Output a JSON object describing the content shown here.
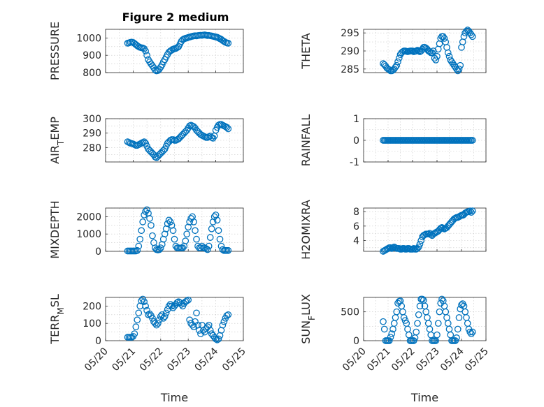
{
  "figure": {
    "title": "Figure 2 medium",
    "marker_color": "#0072BD"
  },
  "chart_data": [
    {
      "type": "scatter",
      "grid": true,
      "ylabel": "PRESSURE",
      "ylim": [
        800,
        1050
      ],
      "yticks": [
        800,
        900,
        1000
      ],
      "ytick_labels": [
        "800",
        "900",
        "1000"
      ],
      "x": [
        0.8,
        0.85,
        0.9,
        0.95,
        1.0,
        1.05,
        1.1,
        1.15,
        1.2,
        1.25,
        1.3,
        1.35,
        1.4,
        1.45,
        1.5,
        1.55,
        1.6,
        1.65,
        1.7,
        1.75,
        1.8,
        1.85,
        1.9,
        1.95,
        2.0,
        2.05,
        2.1,
        2.15,
        2.2,
        2.25,
        2.3,
        2.35,
        2.4,
        2.45,
        2.5,
        2.55,
        2.6,
        2.65,
        2.7,
        2.75,
        2.8,
        2.85,
        2.9,
        2.95,
        3.0,
        3.05,
        3.1,
        3.15,
        3.2,
        3.25,
        3.3,
        3.35,
        3.4,
        3.45,
        3.5,
        3.55,
        3.6,
        3.65,
        3.7,
        3.75,
        3.8,
        3.85,
        3.9,
        3.95,
        4.0,
        4.05,
        4.1,
        4.15,
        4.2,
        4.25,
        4.3,
        4.35,
        4.4,
        4.45
      ],
      "y": [
        970,
        972,
        975,
        976,
        974,
        968,
        962,
        955,
        950,
        946,
        944,
        942,
        938,
        925,
        900,
        875,
        862,
        850,
        840,
        828,
        815,
        810,
        812,
        820,
        832,
        845,
        862,
        875,
        890,
        905,
        918,
        925,
        930,
        935,
        938,
        940,
        945,
        950,
        965,
        980,
        990,
        995,
        998,
        1000,
        1003,
        1005,
        1008,
        1010,
        1012,
        1013,
        1012,
        1014,
        1015,
        1016,
        1015,
        1017,
        1018,
        1016,
        1014,
        1015,
        1013,
        1012,
        1010,
        1008,
        1006,
        1004,
        1000,
        996,
        992,
        985,
        980,
        975,
        972,
        970
      ]
    },
    {
      "type": "scatter",
      "grid": true,
      "ylabel": "THETA",
      "ylim": [
        284,
        296
      ],
      "yticks": [
        285,
        290,
        295
      ],
      "ytick_labels": [
        "285",
        "290",
        "295"
      ],
      "x": [
        0.8,
        0.85,
        0.9,
        0.95,
        1.0,
        1.05,
        1.1,
        1.15,
        1.2,
        1.25,
        1.3,
        1.35,
        1.4,
        1.45,
        1.5,
        1.55,
        1.6,
        1.65,
        1.7,
        1.75,
        1.8,
        1.85,
        1.9,
        1.95,
        2.0,
        2.05,
        2.1,
        2.15,
        2.2,
        2.25,
        2.3,
        2.35,
        2.4,
        2.45,
        2.5,
        2.55,
        2.6,
        2.65,
        2.7,
        2.75,
        2.8,
        2.85,
        2.9,
        2.95,
        3.0,
        3.05,
        3.1,
        3.15,
        3.2,
        3.25,
        3.3,
        3.35,
        3.4,
        3.45,
        3.5,
        3.55,
        3.6,
        3.65,
        3.7,
        3.75,
        3.8,
        3.85,
        3.9,
        3.95,
        4.0,
        4.05,
        4.1,
        4.15,
        4.2,
        4.25,
        4.3,
        4.35,
        4.4,
        4.45
      ],
      "y": [
        286.5,
        286.2,
        285.8,
        285.3,
        285.0,
        284.8,
        284.5,
        284.5,
        284.7,
        285.0,
        285.5,
        286.0,
        287.0,
        288.0,
        289.0,
        289.5,
        289.8,
        290.0,
        290.0,
        289.9,
        289.8,
        289.9,
        290.0,
        290.0,
        290.0,
        289.8,
        289.9,
        290.0,
        290.2,
        290.0,
        289.8,
        290.0,
        290.5,
        291.0,
        291.0,
        290.8,
        290.5,
        290.0,
        289.8,
        289.5,
        289.5,
        290.0,
        288.0,
        287.5,
        288.5,
        290.5,
        292.0,
        293.5,
        294.0,
        294.0,
        293.5,
        292.5,
        291.0,
        289.5,
        288.5,
        287.5,
        287.0,
        286.5,
        286.0,
        285.5,
        285.0,
        284.5,
        285.0,
        286.0,
        291.0,
        292.5,
        294.0,
        295.0,
        295.5,
        295.8,
        295.5,
        295.0,
        294.5,
        294.0
      ]
    },
    {
      "type": "scatter",
      "grid": true,
      "ylabel": "AIR_TEMP",
      "ylim": [
        270,
        300
      ],
      "yticks": [
        280,
        290,
        300
      ],
      "ytick_labels": [
        "280",
        "290",
        "300"
      ],
      "x": [
        0.8,
        0.85,
        0.9,
        0.95,
        1.0,
        1.05,
        1.1,
        1.15,
        1.2,
        1.25,
        1.3,
        1.35,
        1.4,
        1.45,
        1.5,
        1.55,
        1.6,
        1.65,
        1.7,
        1.75,
        1.8,
        1.85,
        1.9,
        1.95,
        2.0,
        2.05,
        2.1,
        2.15,
        2.2,
        2.25,
        2.3,
        2.35,
        2.4,
        2.45,
        2.5,
        2.55,
        2.6,
        2.65,
        2.7,
        2.75,
        2.8,
        2.85,
        2.9,
        2.95,
        3.0,
        3.05,
        3.1,
        3.15,
        3.2,
        3.25,
        3.3,
        3.35,
        3.4,
        3.45,
        3.5,
        3.55,
        3.6,
        3.65,
        3.7,
        3.75,
        3.8,
        3.85,
        3.9,
        3.95,
        4.0,
        4.05,
        4.1,
        4.15,
        4.2,
        4.25,
        4.3,
        4.35,
        4.4,
        4.45
      ],
      "y": [
        284,
        283.5,
        283,
        282.8,
        282.5,
        282.0,
        281.5,
        281.5,
        282.0,
        282.5,
        283.0,
        283.5,
        284.0,
        283.0,
        281.0,
        279.0,
        278.0,
        277.0,
        276.0,
        275.0,
        273.5,
        273.0,
        274.0,
        275.0,
        276.0,
        277.0,
        278.0,
        279.0,
        281.0,
        283.0,
        284.0,
        285.0,
        285.5,
        285.5,
        285.0,
        285.0,
        285.5,
        286.0,
        287.0,
        288.0,
        289.0,
        290.0,
        291.0,
        292.0,
        293.5,
        295.0,
        295.5,
        295.0,
        294.5,
        293.5,
        292.0,
        291.0,
        290.0,
        289.0,
        288.5,
        288.0,
        287.5,
        287.0,
        287.0,
        287.5,
        288.0,
        287.0,
        286.5,
        288.0,
        292.0,
        294.0,
        295.5,
        296.0,
        296.0,
        295.5,
        295.0,
        294.5,
        294.0,
        293.0
      ]
    },
    {
      "type": "scatter",
      "grid": true,
      "ylabel": "RAINFALL",
      "ylim": [
        -1,
        1
      ],
      "yticks": [
        -1,
        0,
        1
      ],
      "ytick_labels": [
        "-1",
        "0",
        "1"
      ],
      "x": [
        0.8,
        0.85,
        0.9,
        0.95,
        1.0,
        1.05,
        1.1,
        1.15,
        1.2,
        1.25,
        1.3,
        1.35,
        1.4,
        1.45,
        1.5,
        1.55,
        1.6,
        1.65,
        1.7,
        1.75,
        1.8,
        1.85,
        1.9,
        1.95,
        2.0,
        2.05,
        2.1,
        2.15,
        2.2,
        2.25,
        2.3,
        2.35,
        2.4,
        2.45,
        2.5,
        2.55,
        2.6,
        2.65,
        2.7,
        2.75,
        2.8,
        2.85,
        2.9,
        2.95,
        3.0,
        3.05,
        3.1,
        3.15,
        3.2,
        3.25,
        3.3,
        3.35,
        3.4,
        3.45,
        3.5,
        3.55,
        3.6,
        3.65,
        3.7,
        3.75,
        3.8,
        3.85,
        3.9,
        3.95,
        4.0,
        4.05,
        4.1,
        4.15,
        4.2,
        4.25,
        4.3,
        4.35,
        4.4,
        4.45
      ],
      "y": [
        0,
        0,
        0,
        0,
        0,
        0,
        0,
        0,
        0,
        0,
        0,
        0,
        0,
        0,
        0,
        0,
        0,
        0,
        0,
        0,
        0,
        0,
        0,
        0,
        0,
        0,
        0,
        0,
        0,
        0,
        0,
        0,
        0,
        0,
        0,
        0,
        0,
        0,
        0,
        0,
        0,
        0,
        0,
        0,
        0,
        0,
        0,
        0,
        0,
        0,
        0,
        0,
        0,
        0,
        0,
        0,
        0,
        0,
        0,
        0,
        0,
        0,
        0,
        0,
        0,
        0,
        0,
        0,
        0,
        0,
        0,
        0,
        0,
        0
      ]
    },
    {
      "type": "scatter",
      "grid": true,
      "ylabel": "MIXDEPTH",
      "ylim": [
        0,
        2500
      ],
      "yticks": [
        0,
        1000,
        2000
      ],
      "ytick_labels": [
        "0",
        "1000",
        "2000"
      ],
      "x": [
        0.8,
        0.85,
        0.9,
        0.95,
        1.0,
        1.05,
        1.1,
        1.15,
        1.2,
        1.25,
        1.3,
        1.35,
        1.4,
        1.45,
        1.5,
        1.55,
        1.6,
        1.65,
        1.7,
        1.75,
        1.8,
        1.85,
        1.9,
        1.95,
        2.0,
        2.05,
        2.1,
        2.15,
        2.2,
        2.25,
        2.3,
        2.35,
        2.4,
        2.45,
        2.5,
        2.55,
        2.6,
        2.65,
        2.7,
        2.75,
        2.8,
        2.85,
        2.9,
        2.95,
        3.0,
        3.05,
        3.1,
        3.15,
        3.2,
        3.25,
        3.3,
        3.35,
        3.4,
        3.45,
        3.5,
        3.55,
        3.6,
        3.65,
        3.7,
        3.75,
        3.8,
        3.85,
        3.9,
        3.95,
        4.0,
        4.05,
        4.1,
        4.15,
        4.2,
        4.25,
        4.3,
        4.35,
        4.4,
        4.45
      ],
      "y": [
        20,
        20,
        20,
        20,
        20,
        20,
        20,
        50,
        300,
        700,
        1200,
        1700,
        2100,
        2300,
        2400,
        2200,
        1900,
        1500,
        900,
        500,
        200,
        100,
        80,
        100,
        200,
        400,
        700,
        1000,
        1300,
        1600,
        1800,
        1700,
        1500,
        1200,
        700,
        300,
        200,
        200,
        200,
        200,
        200,
        300,
        600,
        1000,
        1400,
        1700,
        1900,
        2000,
        1700,
        1200,
        700,
        300,
        200,
        200,
        300,
        200,
        200,
        150,
        100,
        300,
        800,
        1300,
        1700,
        2000,
        2100,
        1800,
        1200,
        700,
        300,
        100,
        50,
        50,
        50,
        50
      ]
    },
    {
      "type": "scatter",
      "grid": true,
      "ylabel": "H2OMIXRA",
      "ylim": [
        2.5,
        8.5
      ],
      "yticks": [
        4,
        6,
        8
      ],
      "ytick_labels": [
        "4",
        "6",
        "8"
      ],
      "x": [
        0.8,
        0.85,
        0.9,
        0.95,
        1.0,
        1.05,
        1.1,
        1.15,
        1.2,
        1.25,
        1.3,
        1.35,
        1.4,
        1.45,
        1.5,
        1.55,
        1.6,
        1.65,
        1.7,
        1.75,
        1.8,
        1.85,
        1.9,
        1.95,
        2.0,
        2.05,
        2.1,
        2.15,
        2.2,
        2.25,
        2.3,
        2.35,
        2.4,
        2.45,
        2.5,
        2.55,
        2.6,
        2.65,
        2.7,
        2.75,
        2.8,
        2.85,
        2.9,
        2.95,
        3.0,
        3.05,
        3.1,
        3.15,
        3.2,
        3.25,
        3.3,
        3.35,
        3.4,
        3.45,
        3.5,
        3.55,
        3.6,
        3.65,
        3.7,
        3.75,
        3.8,
        3.85,
        3.9,
        3.95,
        4.0,
        4.05,
        4.1,
        4.15,
        4.2,
        4.25,
        4.3,
        4.35,
        4.4,
        4.45
      ],
      "y": [
        2.5,
        2.6,
        2.7,
        2.8,
        2.9,
        3.0,
        3.0,
        2.9,
        3.0,
        3.1,
        3.0,
        2.9,
        2.9,
        2.9,
        2.8,
        2.8,
        2.9,
        2.9,
        2.8,
        2.8,
        2.9,
        2.9,
        2.8,
        2.8,
        2.8,
        2.9,
        2.8,
        2.8,
        2.9,
        3.1,
        3.5,
        4.0,
        4.5,
        4.7,
        4.8,
        4.9,
        4.9,
        4.9,
        5.0,
        4.8,
        4.7,
        4.9,
        5.0,
        5.1,
        5.2,
        5.3,
        5.5,
        5.7,
        5.8,
        5.7,
        5.6,
        5.7,
        5.8,
        6.0,
        6.2,
        6.4,
        6.6,
        6.8,
        7.0,
        7.1,
        7.2,
        7.2,
        7.3,
        7.4,
        7.5,
        7.5,
        7.6,
        7.8,
        7.9,
        8.0,
        8.0,
        8.1,
        7.9,
        8.1
      ]
    },
    {
      "type": "scatter",
      "grid": true,
      "ylabel": "TERR_MSL",
      "ylim": [
        0,
        250
      ],
      "yticks": [
        0,
        100,
        200
      ],
      "ytick_labels": [
        "0",
        "100",
        "200"
      ],
      "x": [
        0.8,
        0.85,
        0.9,
        0.95,
        1.0,
        1.05,
        1.1,
        1.15,
        1.2,
        1.25,
        1.3,
        1.35,
        1.4,
        1.45,
        1.5,
        1.55,
        1.6,
        1.65,
        1.7,
        1.75,
        1.8,
        1.85,
        1.9,
        1.95,
        2.0,
        2.05,
        2.1,
        2.15,
        2.2,
        2.25,
        2.3,
        2.35,
        2.4,
        2.45,
        2.5,
        2.55,
        2.6,
        2.65,
        2.7,
        2.75,
        2.8,
        2.85,
        2.9,
        2.95,
        3.0,
        3.05,
        3.1,
        3.15,
        3.2,
        3.25,
        3.3,
        3.35,
        3.4,
        3.45,
        3.5,
        3.55,
        3.6,
        3.65,
        3.7,
        3.75,
        3.8,
        3.85,
        3.9,
        3.95,
        4.0,
        4.05,
        4.1,
        4.15,
        4.2,
        4.25,
        4.3,
        4.35,
        4.4,
        4.45
      ],
      "y": [
        20,
        20,
        20,
        20,
        25,
        40,
        80,
        120,
        160,
        200,
        230,
        240,
        225,
        200,
        175,
        150,
        155,
        145,
        130,
        110,
        100,
        90,
        100,
        120,
        140,
        150,
        130,
        140,
        160,
        180,
        200,
        210,
        200,
        190,
        200,
        210,
        220,
        225,
        220,
        210,
        200,
        215,
        225,
        230,
        235,
        120,
        100,
        90,
        80,
        110,
        160,
        90,
        60,
        40,
        90,
        60,
        50,
        70,
        80,
        90,
        60,
        40,
        30,
        20,
        10,
        5,
        10,
        30,
        60,
        90,
        110,
        130,
        145,
        150
      ]
    },
    {
      "type": "scatter",
      "grid": true,
      "ylabel": "SUN_FLUX",
      "ylim": [
        0,
        750
      ],
      "yticks": [
        0,
        500
      ],
      "ytick_labels": [
        "0",
        "500"
      ],
      "x": [
        0.8,
        0.85,
        0.9,
        0.95,
        1.0,
        1.05,
        1.1,
        1.15,
        1.2,
        1.25,
        1.3,
        1.35,
        1.4,
        1.45,
        1.5,
        1.55,
        1.6,
        1.65,
        1.7,
        1.75,
        1.8,
        1.85,
        1.9,
        1.95,
        2.0,
        2.05,
        2.1,
        2.15,
        2.2,
        2.25,
        2.3,
        2.35,
        2.4,
        2.45,
        2.5,
        2.55,
        2.6,
        2.65,
        2.7,
        2.75,
        2.8,
        2.85,
        2.9,
        2.95,
        3.0,
        3.05,
        3.1,
        3.15,
        3.2,
        3.25,
        3.3,
        3.35,
        3.4,
        3.45,
        3.5,
        3.55,
        3.6,
        3.65,
        3.7,
        3.75,
        3.8,
        3.85,
        3.9,
        3.95,
        4.0,
        4.05,
        4.1,
        4.15,
        4.2,
        4.25,
        4.3,
        4.35,
        4.4,
        4.45
      ],
      "y": [
        330,
        200,
        0,
        0,
        0,
        0,
        60,
        120,
        200,
        300,
        400,
        500,
        650,
        680,
        690,
        600,
        500,
        400,
        350,
        300,
        200,
        100,
        0,
        0,
        0,
        0,
        50,
        150,
        300,
        450,
        600,
        720,
        720,
        700,
        600,
        500,
        400,
        300,
        200,
        100,
        0,
        0,
        0,
        0,
        100,
        300,
        500,
        650,
        720,
        690,
        600,
        500,
        400,
        300,
        200,
        100,
        0,
        0,
        0,
        0,
        50,
        200,
        400,
        550,
        620,
        640,
        600,
        500,
        400,
        300,
        200,
        150,
        120,
        150
      ]
    }
  ],
  "x_axis": {
    "label": "Time",
    "xlim": [
      0,
      5
    ],
    "ticks": [
      0,
      1,
      2,
      3,
      4,
      5
    ],
    "tick_labels": [
      "05/20",
      "05/21",
      "05/22",
      "05/23",
      "05/24",
      "05/25"
    ]
  }
}
